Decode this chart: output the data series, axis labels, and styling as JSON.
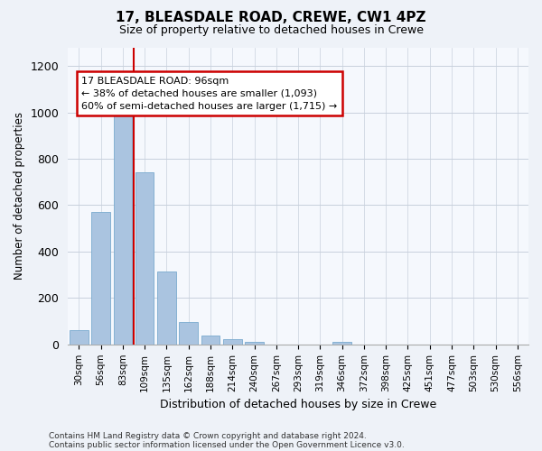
{
  "title1": "17, BLEASDALE ROAD, CREWE, CW1 4PZ",
  "title2": "Size of property relative to detached houses in Crewe",
  "xlabel": "Distribution of detached houses by size in Crewe",
  "ylabel": "Number of detached properties",
  "categories": [
    "30sqm",
    "56sqm",
    "83sqm",
    "109sqm",
    "135sqm",
    "162sqm",
    "188sqm",
    "214sqm",
    "240sqm",
    "267sqm",
    "293sqm",
    "319sqm",
    "346sqm",
    "372sqm",
    "398sqm",
    "425sqm",
    "451sqm",
    "477sqm",
    "503sqm",
    "530sqm",
    "556sqm"
  ],
  "values": [
    62,
    570,
    1005,
    742,
    315,
    95,
    37,
    22,
    12,
    0,
    0,
    0,
    12,
    0,
    0,
    0,
    0,
    0,
    0,
    0,
    0
  ],
  "bar_color": "#aac4e0",
  "bar_edgecolor": "#7aaace",
  "vline_x_idx": 2,
  "vline_color": "#cc0000",
  "annotation_line1": "17 BLEASDALE ROAD: 96sqm",
  "annotation_line2": "← 38% of detached houses are smaller (1,093)",
  "annotation_line3": "60% of semi-detached houses are larger (1,715) →",
  "annotation_box_color": "#ffffff",
  "annotation_box_edgecolor": "#cc0000",
  "ylim": [
    0,
    1280
  ],
  "yticks": [
    0,
    200,
    400,
    600,
    800,
    1000,
    1200
  ],
  "footer1": "Contains HM Land Registry data © Crown copyright and database right 2024.",
  "footer2": "Contains public sector information licensed under the Open Government Licence v3.0.",
  "bg_color": "#eef2f8",
  "plot_bg_color": "#f5f8fd",
  "grid_color": "#c8d0dc"
}
